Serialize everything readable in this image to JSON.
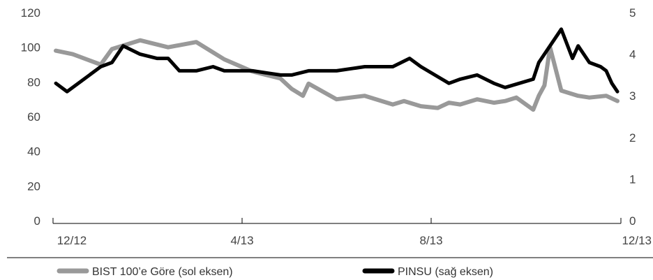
{
  "chart_data": {
    "type": "line",
    "x_tick_labels": [
      "12/12",
      "4/13",
      "8/13",
      "12/13"
    ],
    "left_axis": {
      "ylim": [
        0,
        120
      ],
      "ticks": [
        0,
        20,
        40,
        60,
        80,
        100,
        120
      ]
    },
    "right_axis": {
      "ylim": [
        0,
        5
      ],
      "ticks": [
        0,
        1,
        2,
        3,
        4,
        5
      ]
    },
    "grid": false,
    "legend_position": "bottom",
    "series": [
      {
        "name": "BIST 100’e Göre (sol eksen)",
        "axis": "left",
        "color": "#999999",
        "x": [
          0,
          0.03,
          0.08,
          0.1,
          0.12,
          0.15,
          0.2,
          0.25,
          0.28,
          0.3,
          0.35,
          0.4,
          0.42,
          0.44,
          0.45,
          0.5,
          0.55,
          0.6,
          0.62,
          0.65,
          0.68,
          0.7,
          0.72,
          0.75,
          0.78,
          0.8,
          0.82,
          0.85,
          0.86,
          0.87,
          0.88,
          0.9,
          0.93,
          0.95,
          0.98,
          1.0
        ],
        "values": [
          98,
          96,
          90,
          99,
          101,
          104,
          100,
          103,
          97,
          93,
          86,
          82,
          76,
          72,
          79,
          70,
          72,
          67,
          69,
          66,
          65,
          68,
          67,
          70,
          68,
          69,
          71,
          64,
          72,
          78,
          100,
          75,
          72,
          71,
          72,
          69
        ]
      },
      {
        "name": "PINSU (sağ eksen)",
        "axis": "right",
        "color": "#000000",
        "x": [
          0,
          0.02,
          0.05,
          0.08,
          0.1,
          0.12,
          0.15,
          0.18,
          0.2,
          0.22,
          0.25,
          0.28,
          0.3,
          0.35,
          0.4,
          0.42,
          0.45,
          0.5,
          0.55,
          0.6,
          0.63,
          0.65,
          0.7,
          0.72,
          0.75,
          0.78,
          0.8,
          0.85,
          0.86,
          0.88,
          0.9,
          0.92,
          0.93,
          0.95,
          0.97,
          0.98,
          0.99,
          1.0
        ],
        "values": [
          3.3,
          3.1,
          3.4,
          3.7,
          3.8,
          4.2,
          4.0,
          3.9,
          3.9,
          3.6,
          3.6,
          3.7,
          3.6,
          3.6,
          3.5,
          3.5,
          3.6,
          3.6,
          3.7,
          3.7,
          3.9,
          3.7,
          3.3,
          3.4,
          3.5,
          3.3,
          3.2,
          3.4,
          3.8,
          4.2,
          4.6,
          3.9,
          4.2,
          3.8,
          3.7,
          3.6,
          3.3,
          3.1
        ]
      }
    ]
  }
}
